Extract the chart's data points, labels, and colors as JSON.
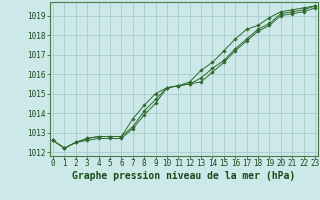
{
  "x": [
    0,
    1,
    2,
    3,
    4,
    5,
    6,
    7,
    8,
    9,
    10,
    11,
    12,
    13,
    14,
    15,
    16,
    17,
    18,
    19,
    20,
    21,
    22,
    23
  ],
  "line1": [
    1012.6,
    1012.2,
    1012.5,
    1012.6,
    1012.7,
    1012.7,
    1012.7,
    1013.2,
    1013.9,
    1014.5,
    1015.3,
    1015.4,
    1015.5,
    1015.6,
    1016.1,
    1016.6,
    1017.2,
    1017.7,
    1018.2,
    1018.5,
    1019.0,
    1019.1,
    1019.2,
    1019.4
  ],
  "line2": [
    1012.6,
    1012.2,
    1012.5,
    1012.7,
    1012.8,
    1012.8,
    1012.8,
    1013.7,
    1014.4,
    1015.0,
    1015.3,
    1015.4,
    1015.6,
    1016.2,
    1016.6,
    1017.2,
    1017.8,
    1018.3,
    1018.5,
    1018.9,
    1019.2,
    1019.3,
    1019.4,
    1019.5
  ],
  "line3": [
    1012.6,
    1012.2,
    1012.5,
    1012.7,
    1012.8,
    1012.8,
    1012.8,
    1013.3,
    1014.1,
    1014.7,
    1015.3,
    1015.4,
    1015.5,
    1015.8,
    1016.3,
    1016.7,
    1017.3,
    1017.8,
    1018.3,
    1018.6,
    1019.1,
    1019.2,
    1019.3,
    1019.5
  ],
  "ylim": [
    1011.8,
    1019.7
  ],
  "yticks": [
    1012,
    1013,
    1014,
    1015,
    1016,
    1017,
    1018,
    1019
  ],
  "xticks": [
    0,
    1,
    2,
    3,
    4,
    5,
    6,
    7,
    8,
    9,
    10,
    11,
    12,
    13,
    14,
    15,
    16,
    17,
    18,
    19,
    20,
    21,
    22,
    23
  ],
  "xlabel": "Graphe pression niveau de la mer (hPa)",
  "line_color": "#2d6a2d",
  "marker": "D",
  "markersize": 1.8,
  "linewidth": 0.7,
  "bg_plot": "#cce8e8",
  "bg_fig": "#cce8e8",
  "grid_color": "#aacccc",
  "label_color": "#1a4a1a",
  "xlabel_fontsize": 7,
  "tick_fontsize": 5.5
}
